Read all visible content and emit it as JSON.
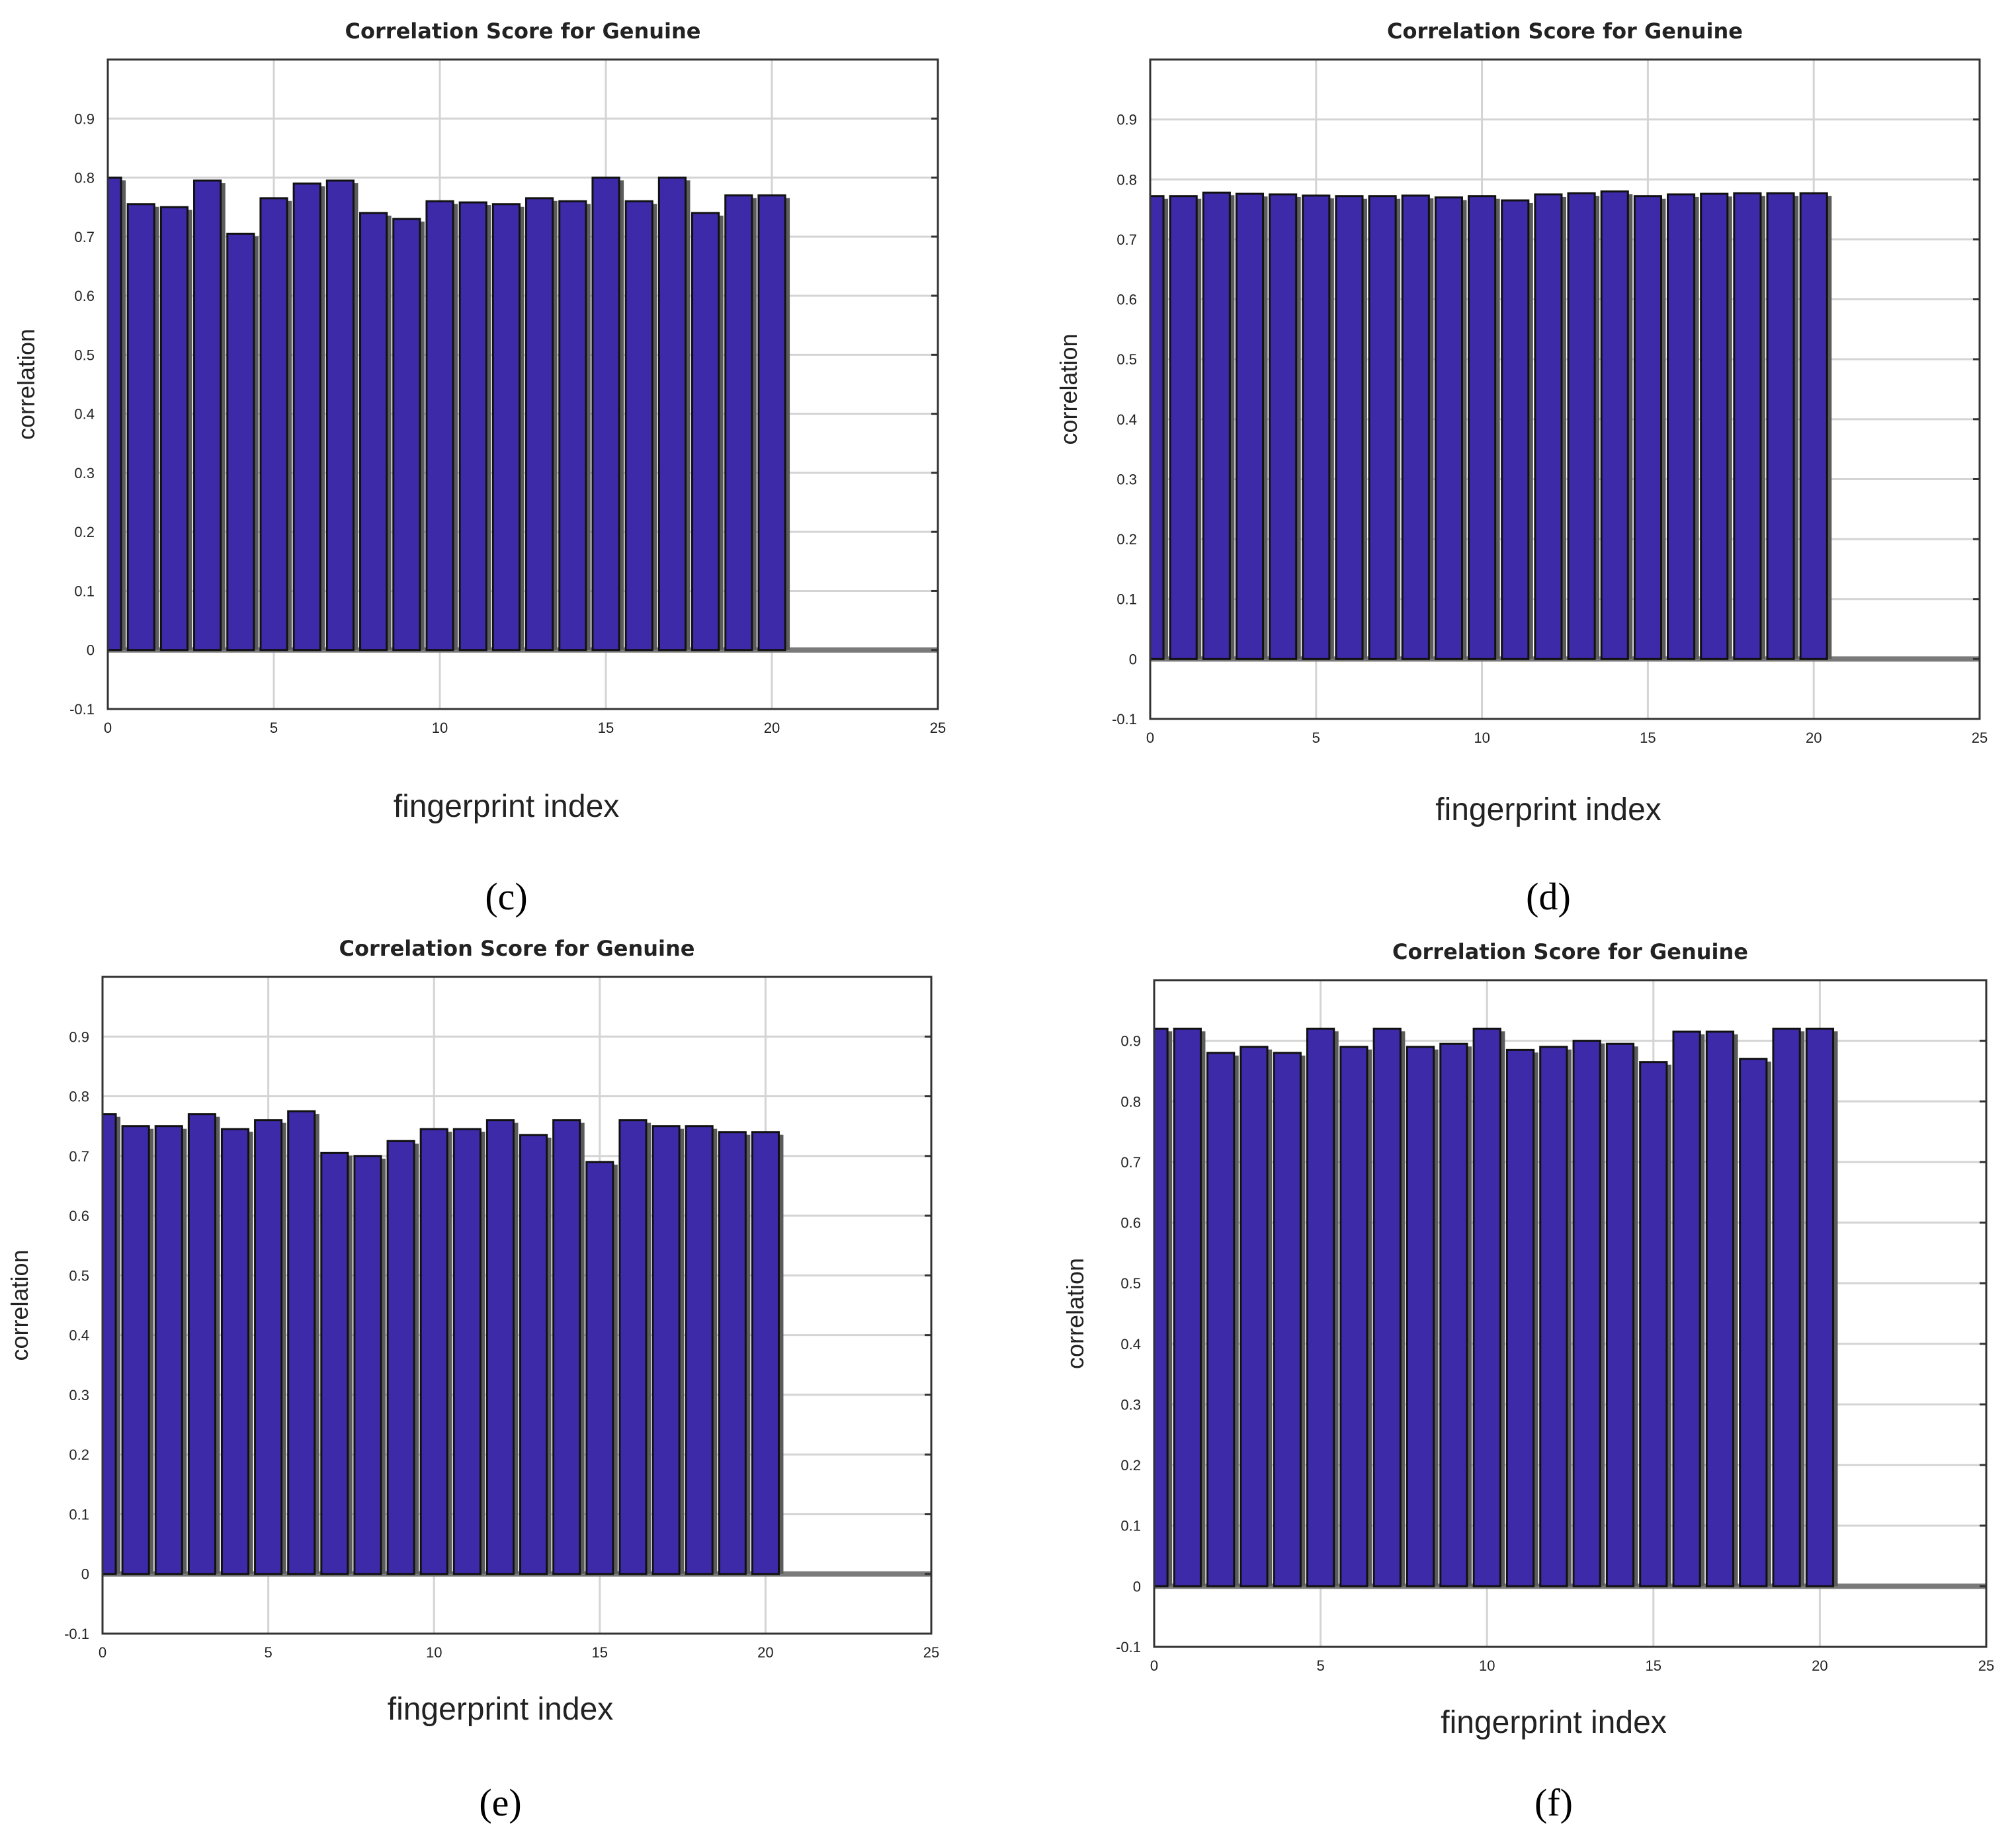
{
  "chart_data": [
    {
      "panel": "c",
      "caption": "(c)",
      "type": "bar",
      "title": "Correlation Score for Genuine",
      "xlabel": "fingerprint index",
      "ylabel": "correlation",
      "xlim": [
        0,
        25
      ],
      "ylim": [
        -0.1,
        1.0
      ],
      "xticks": [
        "0",
        "5",
        "10",
        "15",
        "20",
        "25"
      ],
      "yticks": [
        "-0.1",
        "0",
        "0.1",
        "0.2",
        "0.3",
        "0.4",
        "0.5",
        "0.6",
        "0.7",
        "0.8",
        "0.9"
      ],
      "grid": true,
      "x": [
        0,
        1,
        2,
        3,
        4,
        5,
        6,
        7,
        8,
        9,
        10,
        11,
        12,
        13,
        14,
        15,
        16,
        17,
        18,
        19,
        20
      ],
      "values": [
        0.8,
        0.755,
        0.75,
        0.795,
        0.705,
        0.765,
        0.79,
        0.795,
        0.74,
        0.73,
        0.76,
        0.758,
        0.755,
        0.765,
        0.76,
        0.8,
        0.76,
        0.8,
        0.74,
        0.77,
        0.77
      ]
    },
    {
      "panel": "d",
      "caption": "(d)",
      "type": "bar",
      "title": "Correlation Score for Genuine",
      "xlabel": "fingerprint index",
      "ylabel": "correlation",
      "xlim": [
        0,
        25
      ],
      "ylim": [
        -0.1,
        1.0
      ],
      "xticks": [
        "0",
        "5",
        "10",
        "15",
        "20",
        "25"
      ],
      "yticks": [
        "-0.1",
        "0",
        "0.1",
        "0.2",
        "0.3",
        "0.4",
        "0.5",
        "0.6",
        "0.7",
        "0.8",
        "0.9"
      ],
      "grid": true,
      "x": [
        0,
        1,
        2,
        3,
        4,
        5,
        6,
        7,
        8,
        9,
        10,
        11,
        12,
        13,
        14,
        15,
        16,
        17,
        18,
        19,
        20
      ],
      "values": [
        0.772,
        0.772,
        0.778,
        0.776,
        0.775,
        0.773,
        0.772,
        0.772,
        0.773,
        0.77,
        0.772,
        0.765,
        0.775,
        0.777,
        0.78,
        0.772,
        0.775,
        0.776,
        0.777,
        0.777,
        0.777
      ]
    },
    {
      "panel": "e",
      "caption": "(e)",
      "type": "bar",
      "title": "Correlation Score for Genuine",
      "xlabel": "fingerprint index",
      "ylabel": "correlation",
      "xlim": [
        0,
        25
      ],
      "ylim": [
        -0.1,
        1.0
      ],
      "xticks": [
        "0",
        "5",
        "10",
        "15",
        "20",
        "25"
      ],
      "yticks": [
        "-0.1",
        "0",
        "0.1",
        "0.2",
        "0.3",
        "0.4",
        "0.5",
        "0.6",
        "0.7",
        "0.8",
        "0.9"
      ],
      "grid": true,
      "x": [
        0,
        1,
        2,
        3,
        4,
        5,
        6,
        7,
        8,
        9,
        10,
        11,
        12,
        13,
        14,
        15,
        16,
        17,
        18,
        19,
        20
      ],
      "values": [
        0.77,
        0.75,
        0.75,
        0.77,
        0.745,
        0.76,
        0.775,
        0.705,
        0.7,
        0.725,
        0.745,
        0.745,
        0.76,
        0.735,
        0.76,
        0.69,
        0.76,
        0.75,
        0.75,
        0.74,
        0.74
      ]
    },
    {
      "panel": "f",
      "caption": "(f)",
      "type": "bar",
      "title": "Correlation Score for Genuine",
      "xlabel": "fingerprint index",
      "ylabel": "correlation",
      "xlim": [
        0,
        25
      ],
      "ylim": [
        -0.1,
        1.0
      ],
      "xticks": [
        "0",
        "5",
        "10",
        "15",
        "20",
        "25"
      ],
      "yticks": [
        "-0.1",
        "0",
        "0.1",
        "0.2",
        "0.3",
        "0.4",
        "0.5",
        "0.6",
        "0.7",
        "0.8",
        "0.9"
      ],
      "grid": true,
      "x": [
        0,
        1,
        2,
        3,
        4,
        5,
        6,
        7,
        8,
        9,
        10,
        11,
        12,
        13,
        14,
        15,
        16,
        17,
        18,
        19,
        20
      ],
      "values": [
        0.92,
        0.92,
        0.88,
        0.89,
        0.88,
        0.92,
        0.89,
        0.92,
        0.89,
        0.895,
        0.92,
        0.885,
        0.89,
        0.9,
        0.895,
        0.865,
        0.915,
        0.915,
        0.87,
        0.92,
        0.92
      ]
    }
  ]
}
